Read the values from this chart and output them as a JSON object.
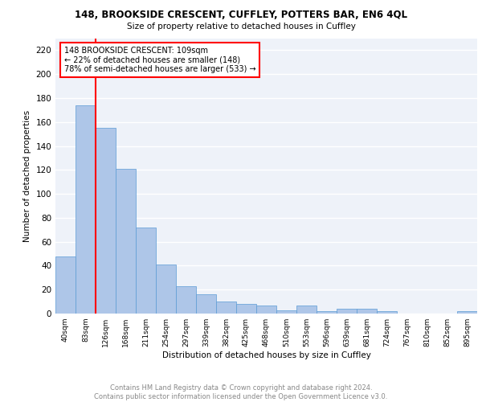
{
  "title1": "148, BROOKSIDE CRESCENT, CUFFLEY, POTTERS BAR, EN6 4QL",
  "title2": "Size of property relative to detached houses in Cuffley",
  "xlabel": "Distribution of detached houses by size in Cuffley",
  "ylabel": "Number of detached properties",
  "footer": "Contains HM Land Registry data © Crown copyright and database right 2024.\nContains public sector information licensed under the Open Government Licence v3.0.",
  "bin_labels": [
    "40sqm",
    "83sqm",
    "126sqm",
    "168sqm",
    "211sqm",
    "254sqm",
    "297sqm",
    "339sqm",
    "382sqm",
    "425sqm",
    "468sqm",
    "510sqm",
    "553sqm",
    "596sqm",
    "639sqm",
    "681sqm",
    "724sqm",
    "767sqm",
    "810sqm",
    "852sqm",
    "895sqm"
  ],
  "bar_values": [
    48,
    174,
    155,
    121,
    72,
    41,
    23,
    16,
    10,
    8,
    7,
    3,
    7,
    2,
    4,
    4,
    2,
    0,
    0,
    0,
    2
  ],
  "bar_color": "#aec6e8",
  "bar_edge_color": "#5b9bd5",
  "vline_x": 1.5,
  "vline_color": "red",
  "annotation_text": "148 BROOKSIDE CRESCENT: 109sqm\n← 22% of detached houses are smaller (148)\n78% of semi-detached houses are larger (533) →",
  "annotation_box_color": "white",
  "annotation_box_edge_color": "red",
  "ylim": [
    0,
    230
  ],
  "yticks": [
    0,
    20,
    40,
    60,
    80,
    100,
    120,
    140,
    160,
    180,
    200,
    220
  ],
  "background_color": "#eef2f9",
  "grid_color": "#ffffff"
}
